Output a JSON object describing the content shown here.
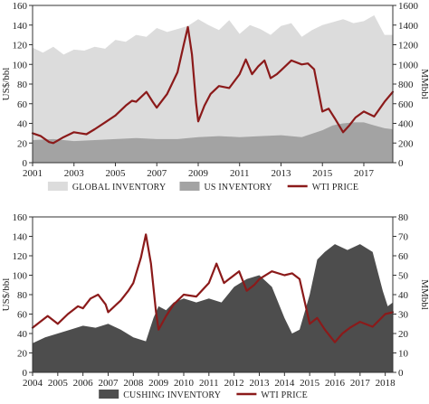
{
  "chart_data": [
    {
      "type": "area",
      "x_range": [
        2001,
        2018.4
      ],
      "x_ticks": [
        "2001",
        "2003",
        "2005",
        "2007",
        "2009",
        "2011",
        "2013",
        "2015",
        "2017"
      ],
      "y_left": {
        "label": "US$/bbl",
        "ylim": [
          0,
          160
        ],
        "ticks": [
          "0",
          "20",
          "40",
          "60",
          "80",
          "100",
          "120",
          "140",
          "160"
        ]
      },
      "y_right": {
        "label": "MMbbl",
        "ylim": [
          0,
          1600
        ],
        "ticks": [
          "0",
          "200",
          "400",
          "600",
          "800",
          "1000",
          "1200",
          "1400",
          "1600"
        ]
      },
      "grid": false,
      "legend": {
        "position": "bottom",
        "items": [
          "GLOBAL INVENTORY",
          "US INVENTORY",
          "WTI PRICE"
        ]
      },
      "colors": {
        "global": "#dcdcdc",
        "us": "#a3a3a3",
        "wti": "#8b1a1a"
      },
      "series": [
        {
          "name": "GLOBAL INVENTORY",
          "axis": "right",
          "kind": "area",
          "x": [
            2001.0,
            2001.5,
            2002.0,
            2002.5,
            2003.0,
            2003.5,
            2004.0,
            2004.5,
            2005.0,
            2005.5,
            2006.0,
            2006.5,
            2007.0,
            2007.5,
            2008.0,
            2008.5,
            2009.0,
            2009.5,
            2010.0,
            2010.5,
            2011.0,
            2011.5,
            2012.0,
            2012.5,
            2013.0,
            2013.5,
            2014.0,
            2014.5,
            2015.0,
            2015.5,
            2016.0,
            2016.5,
            2017.0,
            2017.5,
            2018.0,
            2018.4
          ],
          "values": [
            1170,
            1120,
            1180,
            1100,
            1150,
            1140,
            1180,
            1160,
            1250,
            1230,
            1300,
            1280,
            1370,
            1330,
            1360,
            1390,
            1460,
            1400,
            1350,
            1450,
            1310,
            1400,
            1360,
            1300,
            1390,
            1420,
            1280,
            1350,
            1400,
            1430,
            1460,
            1420,
            1440,
            1500,
            1300,
            1300
          ]
        },
        {
          "name": "US INVENTORY",
          "axis": "right",
          "kind": "area",
          "x": [
            2001.0,
            2002.0,
            2003.0,
            2004.0,
            2005.0,
            2006.0,
            2007.0,
            2008.0,
            2009.0,
            2010.0,
            2011.0,
            2012.0,
            2013.0,
            2014.0,
            2015.0,
            2015.5,
            2016.0,
            2016.5,
            2017.0,
            2017.5,
            2018.0,
            2018.4
          ],
          "values": [
            230,
            240,
            220,
            230,
            240,
            250,
            240,
            240,
            260,
            270,
            260,
            270,
            280,
            260,
            330,
            380,
            400,
            410,
            410,
            380,
            350,
            340
          ]
        },
        {
          "name": "WTI PRICE",
          "axis": "left",
          "kind": "line",
          "x": [
            2001.0,
            2001.4,
            2001.8,
            2002.0,
            2002.5,
            2003.0,
            2003.3,
            2003.6,
            2004.0,
            2004.5,
            2005.0,
            2005.5,
            2005.8,
            2006.0,
            2006.5,
            2006.8,
            2007.0,
            2007.5,
            2008.0,
            2008.3,
            2008.5,
            2008.7,
            2008.9,
            2009.0,
            2009.3,
            2009.6,
            2010.0,
            2010.5,
            2011.0,
            2011.3,
            2011.6,
            2011.9,
            2012.2,
            2012.5,
            2012.8,
            2013.0,
            2013.5,
            2014.0,
            2014.3,
            2014.6,
            2015.0,
            2015.3,
            2015.6,
            2016.0,
            2016.3,
            2016.6,
            2017.0,
            2017.5,
            2018.0,
            2018.4
          ],
          "values": [
            30,
            27,
            21,
            20,
            26,
            31,
            30,
            29,
            34,
            41,
            48,
            58,
            63,
            62,
            72,
            62,
            56,
            70,
            92,
            120,
            138,
            110,
            60,
            42,
            58,
            70,
            78,
            76,
            90,
            105,
            90,
            98,
            104,
            86,
            90,
            94,
            104,
            100,
            101,
            95,
            52,
            55,
            45,
            31,
            38,
            46,
            52,
            47,
            62,
            72
          ]
        }
      ]
    },
    {
      "type": "area",
      "x_range": [
        2004,
        2018.3
      ],
      "x_ticks": [
        "2004",
        "2005",
        "2006",
        "2007",
        "2008",
        "2009",
        "2010",
        "2011",
        "2012",
        "2013",
        "2014",
        "2015",
        "2016",
        "2017",
        "2018"
      ],
      "y_left": {
        "label": "US$/bbl",
        "ylim": [
          0,
          160
        ],
        "ticks": [
          "0",
          "20",
          "40",
          "60",
          "80",
          "100",
          "120",
          "140",
          "160"
        ]
      },
      "y_right": {
        "label": "MMbbl",
        "ylim": [
          0,
          80
        ],
        "ticks": [
          "0",
          "10",
          "20",
          "30",
          "40",
          "50",
          "60",
          "70",
          "80"
        ]
      },
      "grid": false,
      "legend": {
        "position": "bottom",
        "items": [
          "CUSHING INVENTORY",
          "WTI PRICE"
        ]
      },
      "colors": {
        "cushing": "#4d4d4d",
        "wti": "#8b1a1a"
      },
      "series": [
        {
          "name": "CUSHING INVENTORY",
          "axis": "right",
          "kind": "area",
          "x": [
            2004.0,
            2004.5,
            2005.0,
            2005.5,
            2006.0,
            2006.5,
            2007.0,
            2007.5,
            2008.0,
            2008.5,
            2008.8,
            2009.0,
            2009.3,
            2009.6,
            2010.0,
            2010.5,
            2011.0,
            2011.5,
            2012.0,
            2012.5,
            2013.0,
            2013.5,
            2014.0,
            2014.3,
            2014.6,
            2015.0,
            2015.3,
            2015.6,
            2016.0,
            2016.5,
            2017.0,
            2017.5,
            2017.9,
            2018.1,
            2018.3
          ],
          "values": [
            15,
            18,
            20,
            22,
            24,
            23,
            25,
            22,
            18,
            16,
            28,
            34,
            32,
            36,
            38,
            36,
            38,
            36,
            44,
            48,
            50,
            44,
            28,
            20,
            22,
            40,
            58,
            62,
            66,
            63,
            66,
            62,
            42,
            34,
            36
          ]
        },
        {
          "name": "WTI PRICE",
          "axis": "left",
          "kind": "line",
          "x": [
            2004.0,
            2004.3,
            2004.6,
            2005.0,
            2005.4,
            2005.8,
            2006.0,
            2006.3,
            2006.6,
            2006.9,
            2007.0,
            2007.5,
            2007.8,
            2008.0,
            2008.3,
            2008.5,
            2008.7,
            2008.9,
            2009.0,
            2009.3,
            2009.6,
            2010.0,
            2010.5,
            2011.0,
            2011.3,
            2011.6,
            2011.9,
            2012.2,
            2012.5,
            2012.8,
            2013.0,
            2013.5,
            2014.0,
            2014.3,
            2014.6,
            2015.0,
            2015.3,
            2015.6,
            2016.0,
            2016.3,
            2016.6,
            2017.0,
            2017.5,
            2018.0,
            2018.3
          ],
          "values": [
            46,
            52,
            58,
            50,
            60,
            68,
            66,
            76,
            80,
            70,
            62,
            74,
            84,
            92,
            118,
            142,
            112,
            62,
            44,
            58,
            70,
            80,
            78,
            92,
            112,
            92,
            98,
            104,
            84,
            90,
            96,
            104,
            100,
            102,
            96,
            50,
            56,
            44,
            31,
            40,
            46,
            52,
            47,
            60,
            62
          ]
        }
      ]
    }
  ]
}
